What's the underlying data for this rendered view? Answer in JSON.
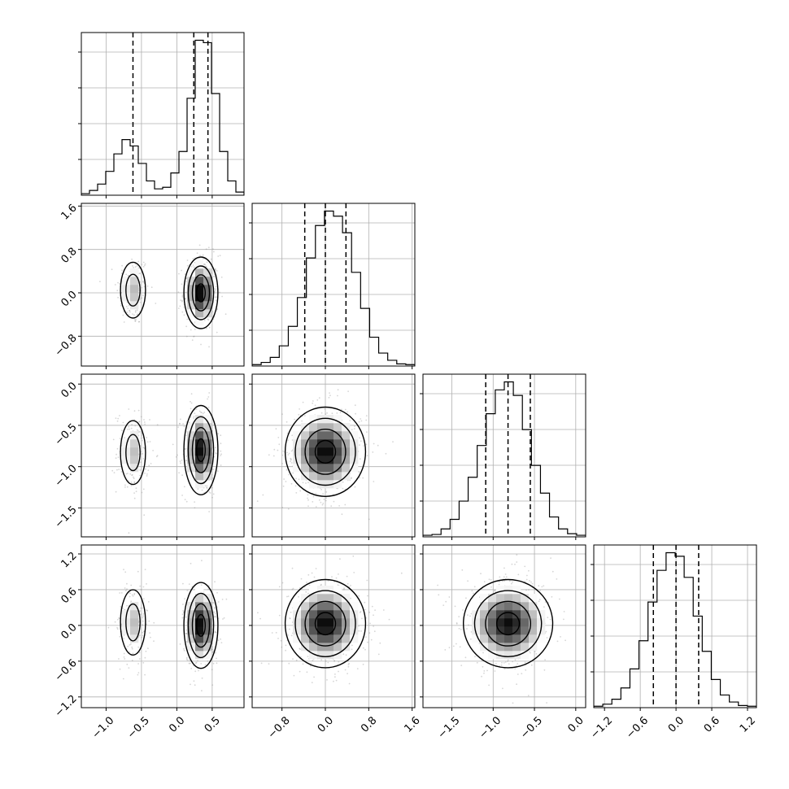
{
  "chart_data": {
    "type": "corner",
    "title": "",
    "dimensions": 4,
    "axis_ranges": [
      [
        -1.35,
        0.95
      ],
      [
        -1.35,
        1.65
      ],
      [
        -1.85,
        0.12
      ],
      [
        -1.38,
        1.35
      ]
    ],
    "x_ticks": [
      [
        {
          "v": -1.0,
          "label": "−1.0"
        },
        {
          "v": -0.5,
          "label": "−0.5"
        },
        {
          "v": 0.0,
          "label": "0.0"
        },
        {
          "v": 0.5,
          "label": "0.5"
        }
      ],
      [
        {
          "v": -0.8,
          "label": "−0.8"
        },
        {
          "v": 0.0,
          "label": "0.0"
        },
        {
          "v": 0.8,
          "label": "0.8"
        },
        {
          "v": 1.6,
          "label": "1.6"
        }
      ],
      [
        {
          "v": -1.5,
          "label": "−1.5"
        },
        {
          "v": -1.0,
          "label": "−1.0"
        },
        {
          "v": -0.5,
          "label": "−0.5"
        },
        {
          "v": 0.0,
          "label": "0.0"
        }
      ],
      [
        {
          "v": -1.2,
          "label": "−1.2"
        },
        {
          "v": -0.6,
          "label": "−0.6"
        },
        {
          "v": 0.0,
          "label": "0.0"
        },
        {
          "v": 0.6,
          "label": "0.6"
        },
        {
          "v": 1.2,
          "label": "1.2"
        }
      ]
    ],
    "y_ticks": [
      null,
      [
        {
          "v": -0.8,
          "label": "−0.8"
        },
        {
          "v": 0.0,
          "label": "0.0"
        },
        {
          "v": 0.8,
          "label": "0.8"
        },
        {
          "v": 1.6,
          "label": "1.6"
        }
      ],
      [
        {
          "v": -1.5,
          "label": "−1.5"
        },
        {
          "v": -1.0,
          "label": "−1.0"
        },
        {
          "v": -0.5,
          "label": "−0.5"
        },
        {
          "v": 0.0,
          "label": "0.0"
        }
      ],
      [
        {
          "v": -1.2,
          "label": "−1.2"
        },
        {
          "v": -0.6,
          "label": "−0.6"
        },
        {
          "v": 0.0,
          "label": "0.0"
        },
        {
          "v": 0.6,
          "label": "0.6"
        },
        {
          "v": 1.2,
          "label": "1.2"
        }
      ]
    ],
    "histograms": [
      {
        "quantiles": [
          -0.62,
          0.24,
          0.44
        ],
        "counts": [
          2,
          6,
          14,
          30,
          52,
          70,
          62,
          40,
          18,
          8,
          10,
          28,
          55,
          122,
          195,
          192,
          128,
          55,
          18,
          4
        ]
      },
      {
        "quantiles": [
          -0.38,
          0.0,
          0.38
        ],
        "counts": [
          2,
          5,
          12,
          28,
          55,
          95,
          150,
          195,
          215,
          208,
          185,
          130,
          80,
          40,
          18,
          8,
          3,
          2
        ]
      },
      {
        "quantiles": [
          -1.09,
          -0.82,
          -0.55
        ],
        "counts": [
          2,
          3,
          10,
          22,
          45,
          75,
          115,
          155,
          185,
          195,
          178,
          135,
          90,
          55,
          25,
          10,
          4,
          2
        ]
      },
      {
        "quantiles": [
          -0.38,
          0.0,
          0.38
        ],
        "counts": [
          2,
          5,
          12,
          28,
          55,
          95,
          150,
          195,
          220,
          215,
          185,
          130,
          80,
          40,
          18,
          8,
          3,
          2
        ]
      }
    ],
    "pair_blobs": [
      {
        "row": 1,
        "col": 0,
        "blobs": [
          {
            "cx": -0.62,
            "cy": 0.05,
            "sx": 0.11,
            "sy": 0.32,
            "w": 0.33
          },
          {
            "cx": 0.34,
            "cy": 0.0,
            "sx": 0.12,
            "sy": 0.33,
            "w": 0.67
          }
        ]
      },
      {
        "row": 2,
        "col": 0,
        "blobs": [
          {
            "cx": -0.62,
            "cy": -0.83,
            "sx": 0.11,
            "sy": 0.24,
            "w": 0.33
          },
          {
            "cx": 0.34,
            "cy": -0.8,
            "sx": 0.12,
            "sy": 0.27,
            "w": 0.67
          }
        ]
      },
      {
        "row": 2,
        "col": 1,
        "blobs": [
          {
            "cx": 0.0,
            "cy": -0.82,
            "sx": 0.37,
            "sy": 0.27,
            "w": 1.0
          }
        ]
      },
      {
        "row": 3,
        "col": 0,
        "blobs": [
          {
            "cx": -0.62,
            "cy": 0.05,
            "sx": 0.11,
            "sy": 0.34,
            "w": 0.33
          },
          {
            "cx": 0.34,
            "cy": 0.0,
            "sx": 0.12,
            "sy": 0.36,
            "w": 0.67
          }
        ]
      },
      {
        "row": 3,
        "col": 1,
        "blobs": [
          {
            "cx": 0.0,
            "cy": 0.03,
            "sx": 0.37,
            "sy": 0.37,
            "w": 1.0
          }
        ]
      },
      {
        "row": 3,
        "col": 2,
        "blobs": [
          {
            "cx": -0.82,
            "cy": 0.03,
            "sx": 0.27,
            "sy": 0.37,
            "w": 1.0
          }
        ]
      }
    ],
    "grid": true,
    "colors": {
      "line": "#000000",
      "grid": "#b0b0b0",
      "scatter": "#8a8a8a",
      "density_max": "#000000"
    }
  }
}
